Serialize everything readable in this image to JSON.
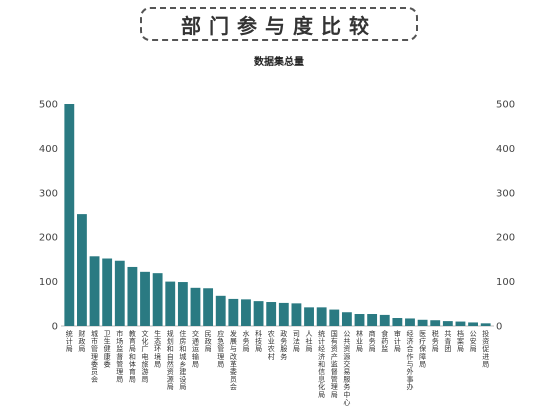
{
  "header": {
    "title": "部门参与度比较"
  },
  "chart_data": {
    "type": "bar",
    "title": "数据集总量",
    "ylim": [
      0,
      500
    ],
    "yticks": [
      0,
      100,
      200,
      300,
      400,
      500
    ],
    "grid": false,
    "right_axis": true,
    "color": "#2a7a82",
    "categories": [
      "统计局",
      "财政局",
      "城市管理委员会",
      "卫生健康委",
      "市场监督管理局",
      "教育局和体育局",
      "文化广电旅游局",
      "生态环境局",
      "规划和自然资源局",
      "住房和城乡建设局",
      "交通运输局",
      "民政局",
      "应急管理局",
      "发展与改革委员会",
      "水务局",
      "科技局",
      "农业农村",
      "政务服务",
      "司法局",
      "人社局",
      "统计经济和信息化局",
      "国有资产监督管理局",
      "公共资源交易服务中心",
      "林业局",
      "商务局",
      "食药监",
      "审计局",
      "经济合作与外事办",
      "医疗保障局",
      "税务局",
      "共青团",
      "档案局",
      "公安局",
      "投资促进局"
    ],
    "values": [
      500,
      252,
      157,
      152,
      147,
      133,
      122,
      119,
      100,
      99,
      86,
      85,
      68,
      61,
      60,
      56,
      54,
      52,
      51,
      42,
      42,
      37,
      31,
      27,
      27,
      25,
      18,
      17,
      14,
      13,
      11,
      10,
      8,
      6
    ]
  }
}
